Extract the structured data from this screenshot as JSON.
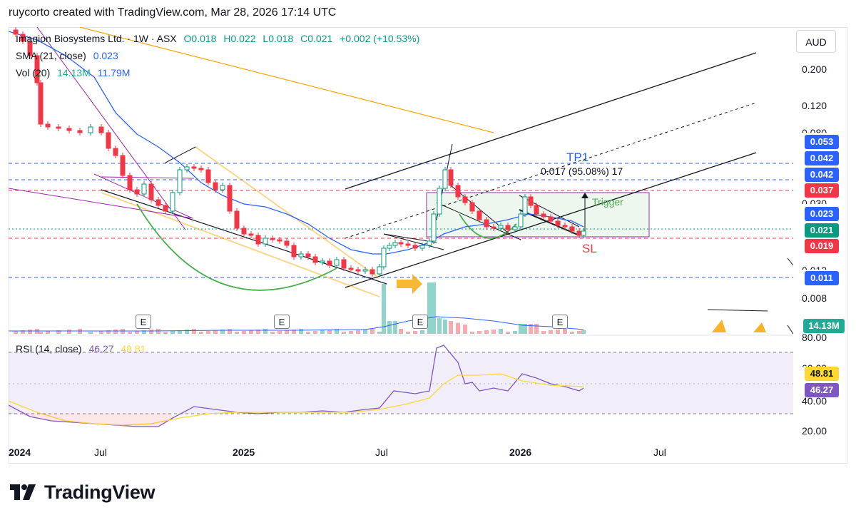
{
  "header": {
    "credit": "ruycorto created with TradingView.com, Mar 28, 2026 17:14 UTC"
  },
  "legend": {
    "symbol": "Imagion Biosystems Ltd. · 1W · ASX",
    "ohlc": {
      "o": "O0.018",
      "h": "H0.022",
      "l": "L0.018",
      "c": "C0.021",
      "change": "+0.002 (+10.53%)"
    },
    "sma_label": "SMA (21, close)",
    "sma_value": "0.023",
    "vol_label": "Vol (20)",
    "vol_value1": "14.13M",
    "vol_value2": "11.79M",
    "rsi_label": "RSI (14, close)",
    "rsi_value1": "46.27",
    "rsi_value2": "48.81"
  },
  "currency_button": "AUD",
  "price_axis": {
    "labels": [
      "0.200",
      "0.120",
      "0.080",
      "0.030",
      "0.013",
      "0.008"
    ],
    "tags": [
      {
        "name": "tag-0053",
        "text": "0.053",
        "color": "#2962ff"
      },
      {
        "name": "tag-0042a",
        "text": "0.042",
        "color": "#2962ff"
      },
      {
        "name": "tag-0042b",
        "text": "0.042",
        "color": "#2962ff"
      },
      {
        "name": "tag-0037",
        "text": "0.037",
        "color": "#f23645"
      },
      {
        "name": "tag-0023",
        "text": "0.023",
        "color": "#2962ff"
      },
      {
        "name": "tag-0021",
        "text": "0.021",
        "color": "#089981"
      },
      {
        "name": "tag-0019",
        "text": "0.019",
        "color": "#f23645"
      },
      {
        "name": "tag-0011",
        "text": "0.011",
        "color": "#2962ff"
      },
      {
        "name": "tag-vol",
        "text": "14.13M",
        "color": "#22ab94"
      }
    ]
  },
  "rsi_axis": {
    "labels": [
      "80.00",
      "60.00",
      "40.00",
      "20.00"
    ],
    "tags": [
      {
        "name": "tag-rsi-ma",
        "text": "48.81",
        "color": "#fdd835",
        "textcolor": "#131722"
      },
      {
        "name": "tag-rsi",
        "text": "46.27",
        "color": "#7e57c2",
        "textcolor": "#ffffff"
      }
    ]
  },
  "time_axis": [
    "2024",
    "Jul",
    "2025",
    "Jul",
    "2026",
    "Jul"
  ],
  "annotations": {
    "tp1": "TP1",
    "measure": "0.017 (95.08%) 17",
    "trigger": "Trigger",
    "sl": "SL",
    "earnings": "E"
  },
  "colors": {
    "up": "#089981",
    "down": "#f23645",
    "sma": "#2962ff",
    "rsi": "#7e57c2",
    "rsi_ma": "#fdd835",
    "trendline": "#131722",
    "orange": "#f7a600",
    "purple": "#9c27b0",
    "green_arc": "#4caf50"
  },
  "brand": "TradingView"
}
